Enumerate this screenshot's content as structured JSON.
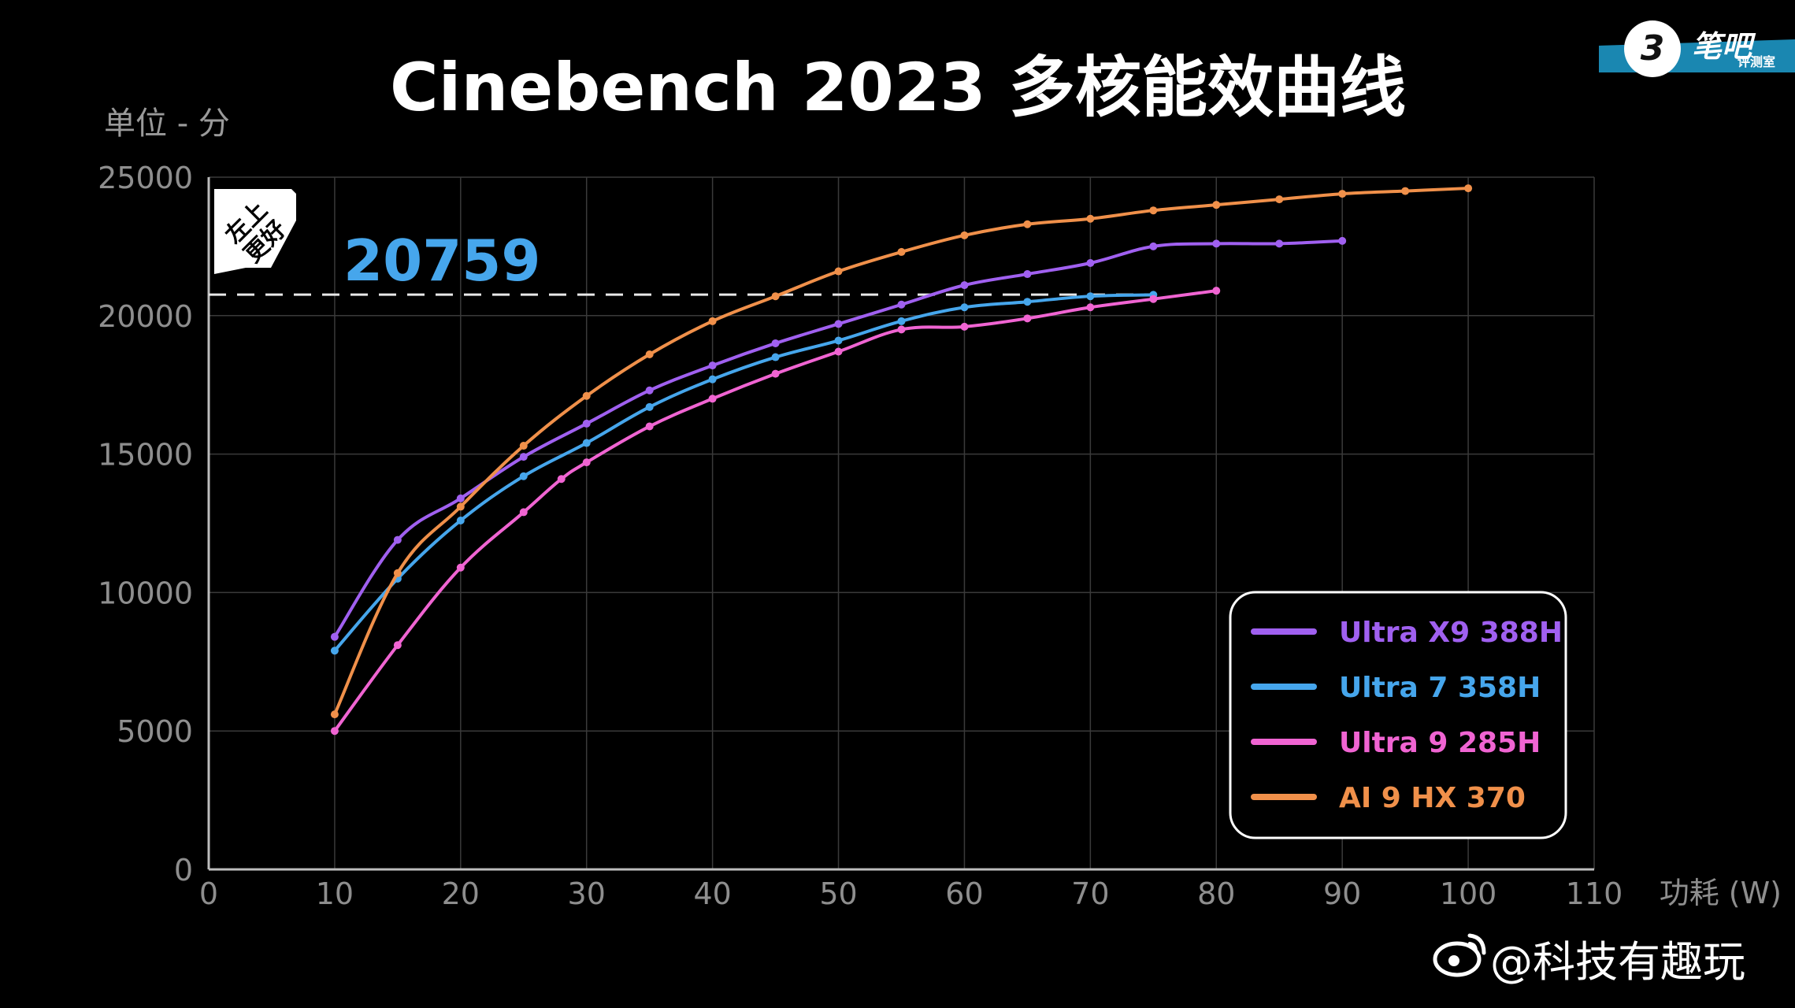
{
  "chart_data": {
    "type": "line",
    "title": "Cinebench 2023 多核能效曲线",
    "ylabel": "单位 - 分",
    "xlabel": "功耗 (W)",
    "xlim": [
      0,
      110
    ],
    "ylim": [
      0,
      25000
    ],
    "xticks": [
      0,
      10,
      20,
      30,
      40,
      50,
      60,
      70,
      80,
      90,
      100,
      110
    ],
    "xtick_labels": [
      "0",
      "10",
      "20",
      "30",
      "40",
      "50",
      "60",
      "70",
      "80",
      "90",
      "100",
      "110"
    ],
    "yticks": [
      0,
      5000,
      10000,
      15000,
      20000,
      25000
    ],
    "ytick_labels": [
      "0",
      "5000",
      "10000",
      "15000",
      "20000",
      "25000"
    ],
    "grid": true,
    "legend_position": "bottom-right",
    "series": [
      {
        "name": "Ultra X9 388H",
        "color": "#a060f0",
        "x": [
          10,
          15,
          20,
          25,
          30,
          35,
          40,
          45,
          50,
          55,
          60,
          65,
          70,
          75,
          80,
          85,
          90
        ],
        "y": [
          8400,
          11900,
          13400,
          14900,
          16100,
          17300,
          18200,
          19000,
          19700,
          20400,
          21100,
          21500,
          21900,
          22500,
          22600,
          22600,
          22700
        ]
      },
      {
        "name": "Ultra 7 358H",
        "color": "#46a6ec",
        "x": [
          10,
          15,
          20,
          25,
          30,
          35,
          40,
          45,
          50,
          55,
          60,
          65,
          70,
          75
        ],
        "y": [
          7900,
          10500,
          12600,
          14200,
          15400,
          16700,
          17700,
          18500,
          19100,
          19800,
          20300,
          20500,
          20700,
          20750
        ]
      },
      {
        "name": "Ultra 9 285H",
        "color": "#f064d2",
        "x": [
          10,
          15,
          20,
          25,
          28,
          30,
          35,
          40,
          45,
          50,
          55,
          60,
          65,
          70,
          75,
          80
        ],
        "y": [
          5000,
          8100,
          10900,
          12900,
          14100,
          14700,
          16000,
          17000,
          17900,
          18700,
          19500,
          19600,
          19900,
          20300,
          20600,
          20900
        ]
      },
      {
        "name": "AI 9 HX 370",
        "color": "#f0904a",
        "x": [
          10,
          15,
          20,
          25,
          30,
          35,
          40,
          45,
          50,
          55,
          60,
          65,
          70,
          75,
          80,
          85,
          90,
          95,
          100
        ],
        "y": [
          5600,
          10700,
          13100,
          15300,
          17100,
          18600,
          19800,
          20700,
          21600,
          22300,
          22900,
          23300,
          23500,
          23800,
          24000,
          24200,
          24400,
          24500,
          24600
        ]
      }
    ],
    "reference_line": {
      "y": 20759,
      "label": "20759",
      "color": "#46a6ec",
      "from_x": 0,
      "to_x": 75
    },
    "badge": {
      "line1": "左上",
      "line2": "更好"
    }
  },
  "watermark": "@科技有趣玩",
  "logo": {
    "mark": "3",
    "text": "笔吧",
    "subtext": "评测室",
    "accent": "#2ab8e8"
  }
}
